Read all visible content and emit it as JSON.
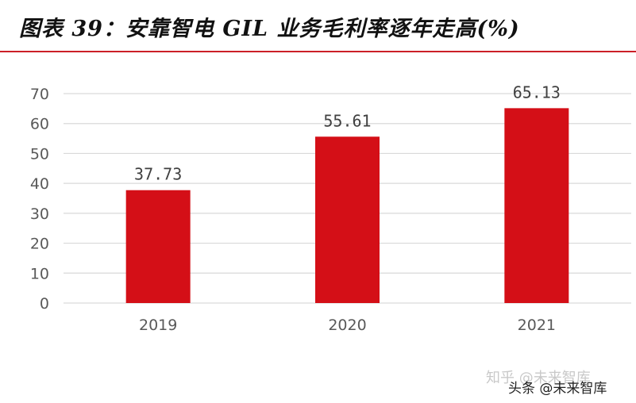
{
  "title": "图表 39：安靠智电 GIL 业务毛利率逐年走高(%)",
  "colors": {
    "accent": "#cc1f28",
    "bar": "#d40f17",
    "grid": "#d9d9d9",
    "axis_text": "#595959"
  },
  "chart_data": {
    "type": "bar",
    "title": "安靠智电 GIL 业务毛利率逐年走高(%)",
    "categories": [
      "2019",
      "2020",
      "2021"
    ],
    "values": [
      37.73,
      55.61,
      65.13
    ],
    "value_labels": [
      "37.73",
      "55.61",
      "65.13"
    ],
    "xlabel": "",
    "ylabel": "",
    "ylim": [
      0,
      70
    ],
    "yticks": [
      0,
      10,
      20,
      30,
      40,
      50,
      60,
      70
    ],
    "grid": true,
    "legend": "none"
  },
  "watermark": {
    "back": "知乎 @未来智库",
    "front": "头条 @未来智库"
  }
}
